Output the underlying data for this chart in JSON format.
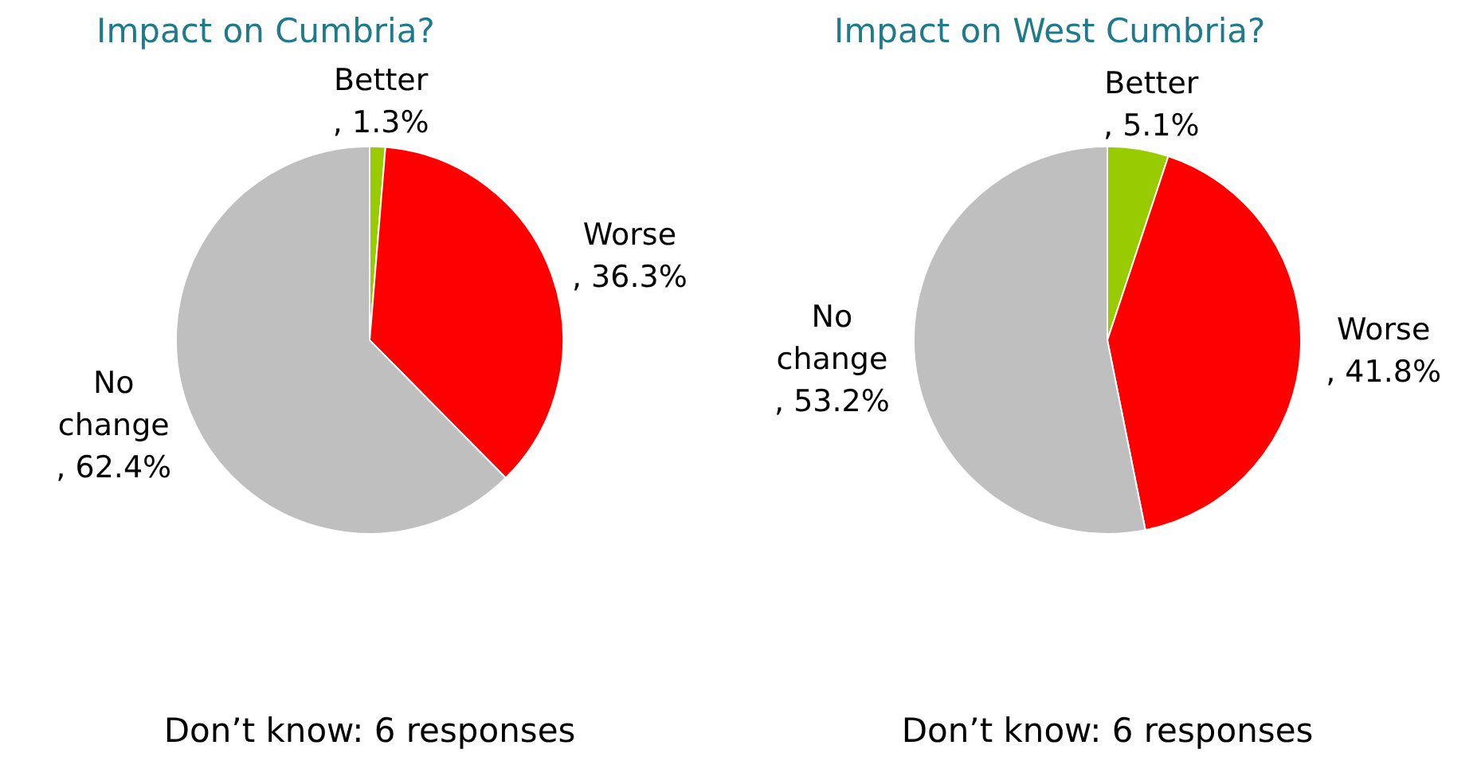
{
  "chart_data": [
    {
      "type": "pie",
      "title": "Impact on Cumbria?",
      "categories": [
        "Better",
        "Worse",
        "No change"
      ],
      "values": [
        1.3,
        36.3,
        62.4
      ],
      "colors": [
        "#99cc00",
        "#ff0000",
        "#bfbfbf"
      ],
      "value_labels": [
        ", 1.3%",
        ", 36.3%",
        ", 62.4%"
      ],
      "annotations": [
        "Don’t know: 6 responses"
      ]
    },
    {
      "type": "pie",
      "title": "Impact on West Cumbria?",
      "categories": [
        "Better",
        "Worse",
        "No change"
      ],
      "values": [
        5.1,
        41.8,
        53.2
      ],
      "colors": [
        "#99cc00",
        "#ff0000",
        "#bfbfbf"
      ],
      "value_labels": [
        ", 5.1%",
        ", 41.8%",
        ", 53.2%"
      ],
      "annotations": [
        "Don’t know: 6 responses"
      ]
    }
  ]
}
